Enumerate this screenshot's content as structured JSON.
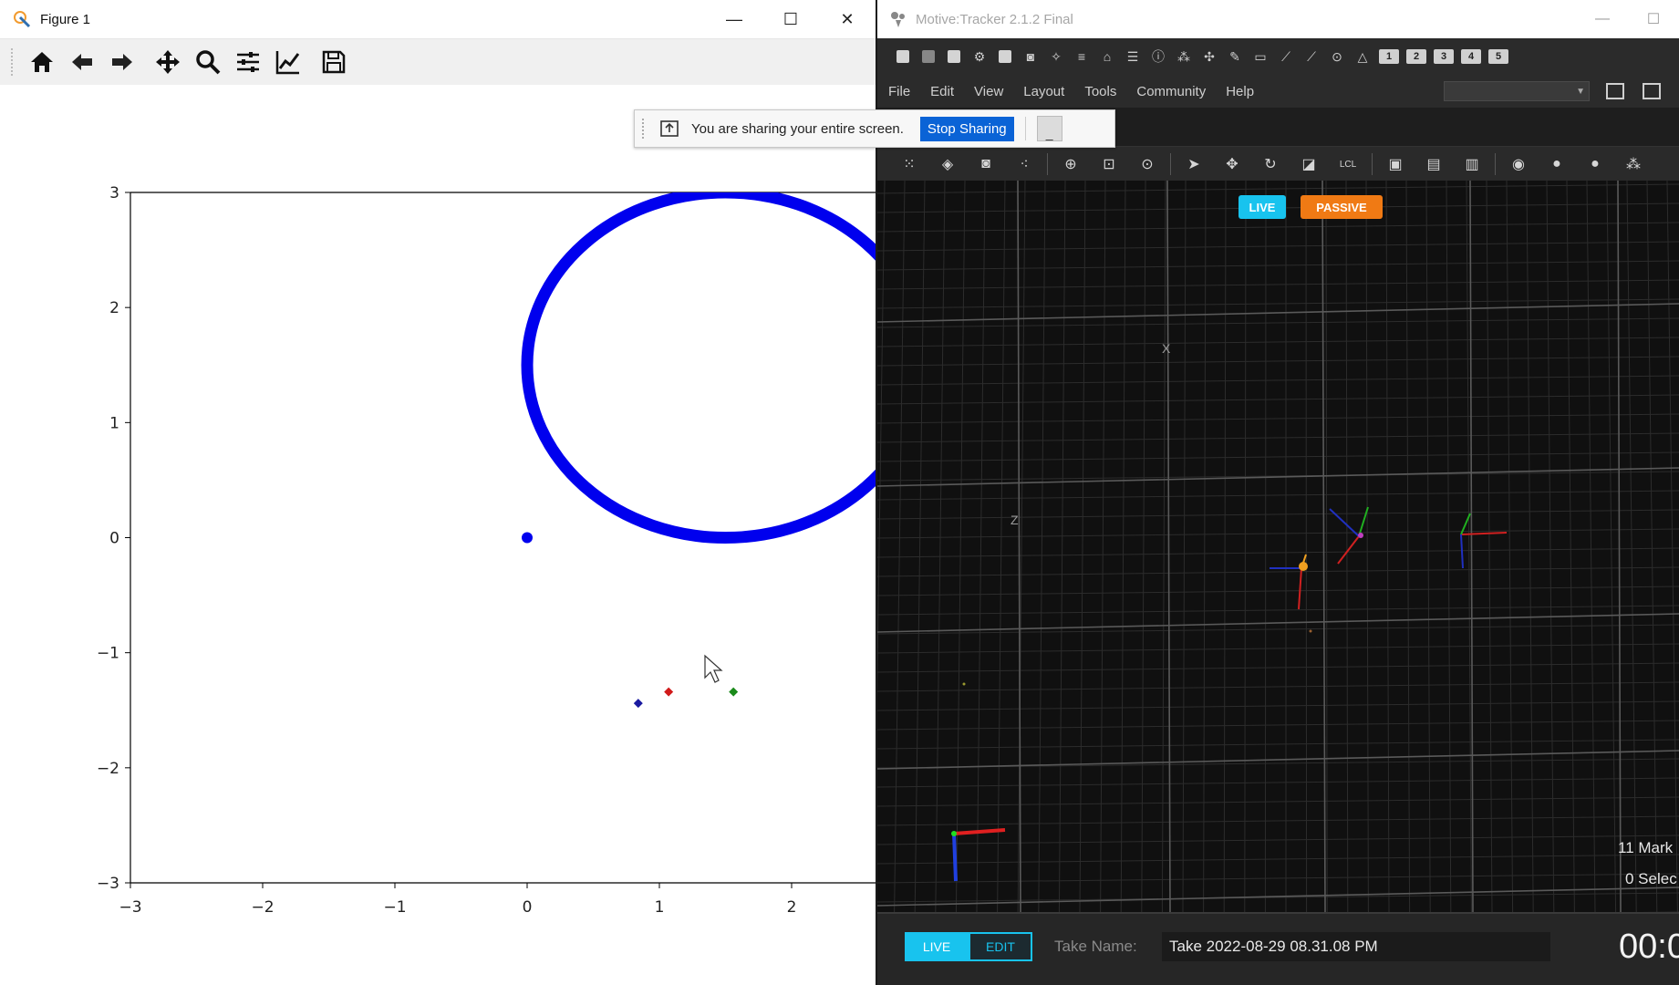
{
  "figure_window": {
    "title": "Figure 1",
    "controls": {
      "minimize": "—",
      "maximize": "☐",
      "close": "✕"
    },
    "toolbar": [
      "home-icon",
      "back-arrow-icon",
      "forward-arrow-icon",
      "pan-icon",
      "zoom-icon",
      "configure-subplots-icon",
      "edit-axis-icon",
      "save-icon"
    ]
  },
  "chart_data": {
    "type": "scatter",
    "title": "",
    "xlabel": "",
    "ylabel": "",
    "xlim": [
      -3,
      2.6
    ],
    "ylim": [
      -3,
      3
    ],
    "x_ticks": [
      "−3",
      "−2",
      "−1",
      "0",
      "1",
      "2"
    ],
    "y_ticks": [
      "3",
      "2",
      "1",
      "0",
      "−1",
      "−2",
      "−3"
    ],
    "grid": false,
    "series": [
      {
        "kind": "circle",
        "color": "#0000ee",
        "center": [
          1.5,
          1.5
        ],
        "radius": 1.5
      },
      {
        "kind": "point",
        "color": "#0000ee",
        "x": 0.0,
        "y": 0.0,
        "marker": "o"
      },
      {
        "kind": "point",
        "color": "#1a1aa0",
        "x": 0.84,
        "y": -1.44,
        "marker": "D"
      },
      {
        "kind": "point",
        "color": "#d11a1a",
        "x": 1.07,
        "y": -1.34,
        "marker": "D"
      },
      {
        "kind": "point",
        "color": "#1a8a1a",
        "x": 1.56,
        "y": -1.34,
        "marker": "D"
      }
    ]
  },
  "share_banner": {
    "text": "You are sharing your entire screen.",
    "stop_label": "Stop Sharing",
    "minimize_label": "_"
  },
  "motive": {
    "title": "Motive:Tracker 2.1.2 Final",
    "controls": {
      "minimize": "—",
      "maximize": "☐"
    },
    "menu": [
      "File",
      "Edit",
      "View",
      "Layout",
      "Tools",
      "Community",
      "Help"
    ],
    "num_buttons": [
      "1",
      "2",
      "3",
      "4",
      "5"
    ],
    "tb2_local_label": "LCL",
    "viewport": {
      "live_badge": "LIVE",
      "passive_badge": "PASSIVE",
      "axis_x": "X",
      "axis_z": "Z",
      "markers_info": "11 Mark",
      "selected_info": "0 Selec"
    },
    "bottom": {
      "live": "LIVE",
      "edit": "EDIT",
      "take_label": "Take Name:",
      "take_value": "Take 2022-08-29 08.31.08 PM",
      "timecode": "00:0"
    },
    "colors": {
      "accent": "#18c3ee",
      "passive": "#f07a14",
      "viewport_bg": "#101010"
    }
  }
}
